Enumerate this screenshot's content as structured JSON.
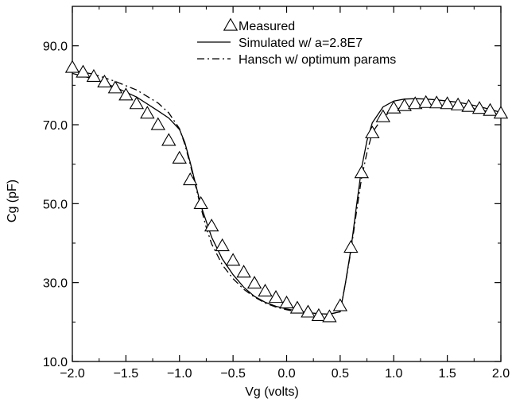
{
  "chart_data": {
    "type": "line",
    "title": "",
    "xlabel": "Vg (volts)",
    "ylabel": "Cg (pF)",
    "xlim": [
      -2.0,
      2.0
    ],
    "ylim": [
      10.0,
      100.0
    ],
    "xticks": [
      -2.0,
      -1.5,
      -1.0,
      -0.5,
      0.0,
      0.5,
      1.0,
      1.5,
      2.0
    ],
    "xtick_labels": [
      "−2.0",
      "−1.5",
      "−1.0",
      "−0.5",
      "0.0",
      "0.5",
      "1.0",
      "1.5",
      "2.0"
    ],
    "yticks": [
      10.0,
      30.0,
      50.0,
      70.0,
      90.0
    ],
    "ytick_labels": [
      "10.0",
      "30.0",
      "50.0",
      "70.0",
      "90.0"
    ],
    "grid": false,
    "legend_position": "top-center",
    "series": [
      {
        "name": "Measured",
        "marker": "triangle",
        "line": "none",
        "x": [
          -2.0,
          -1.9,
          -1.8,
          -1.7,
          -1.6,
          -1.5,
          -1.4,
          -1.3,
          -1.2,
          -1.1,
          -1.0,
          -0.9,
          -0.8,
          -0.7,
          -0.6,
          -0.5,
          -0.4,
          -0.3,
          -0.2,
          -0.1,
          0.0,
          0.1,
          0.2,
          0.3,
          0.4,
          0.5,
          0.6,
          0.7,
          0.8,
          0.9,
          1.0,
          1.1,
          1.2,
          1.3,
          1.4,
          1.5,
          1.6,
          1.7,
          1.8,
          1.9,
          2.0
        ],
        "y": [
          84.5,
          83.3,
          82.2,
          80.8,
          79.3,
          77.5,
          75.3,
          72.9,
          70.0,
          66.0,
          61.5,
          56.0,
          50.0,
          44.3,
          39.3,
          35.6,
          32.6,
          29.8,
          27.8,
          26.2,
          24.8,
          23.5,
          22.5,
          21.6,
          21.3,
          24.1,
          38.9,
          57.8,
          67.9,
          72.0,
          74.2,
          74.8,
          75.3,
          75.6,
          75.5,
          75.3,
          75.0,
          74.6,
          74.1,
          73.6,
          72.9
        ]
      },
      {
        "name": "Simulated w/ a=2.8E7",
        "line": "solid",
        "x": [
          -2.0,
          -1.8,
          -1.6,
          -1.4,
          -1.2,
          -1.1,
          -1.0,
          -0.95,
          -0.9,
          -0.85,
          -0.8,
          -0.7,
          -0.6,
          -0.5,
          -0.4,
          -0.3,
          -0.2,
          -0.1,
          0.0,
          0.1,
          0.2,
          0.3,
          0.4,
          0.5,
          0.55,
          0.6,
          0.65,
          0.7,
          0.75,
          0.8,
          0.9,
          1.0,
          1.1,
          1.2,
          1.3,
          1.4,
          1.5,
          1.6,
          1.7,
          1.8,
          1.9,
          2.0
        ],
        "y": [
          83.0,
          81.6,
          79.5,
          77.0,
          73.5,
          71.7,
          68.8,
          65.5,
          60.5,
          55.0,
          49.5,
          41.5,
          36.0,
          32.0,
          28.8,
          26.5,
          25.0,
          24.0,
          23.3,
          22.8,
          22.4,
          22.1,
          22.0,
          22.6,
          30.0,
          38.5,
          49.0,
          59.0,
          66.0,
          70.5,
          74.5,
          76.0,
          76.5,
          76.6,
          76.5,
          76.3,
          76.0,
          75.7,
          75.2,
          74.6,
          73.9,
          73.1
        ]
      },
      {
        "name": "Hansch w/ optimum params",
        "line": "dashdot",
        "x": [
          -2.0,
          -1.8,
          -1.6,
          -1.4,
          -1.2,
          -1.1,
          -1.0,
          -0.95,
          -0.9,
          -0.85,
          -0.8,
          -0.75,
          -0.7,
          -0.6,
          -0.5,
          -0.4,
          -0.3,
          -0.2,
          -0.1,
          0.0,
          0.1,
          0.2,
          0.3,
          0.4,
          0.5,
          0.55,
          0.6,
          0.65,
          0.7,
          0.75,
          0.8,
          0.9,
          1.0,
          1.1,
          1.2,
          1.3,
          1.4,
          1.5,
          1.6,
          1.7,
          1.8,
          1.9,
          2.0
        ],
        "y": [
          83.8,
          82.8,
          81.0,
          78.8,
          75.5,
          73.0,
          69.0,
          65.0,
          60.0,
          54.5,
          49.0,
          44.0,
          39.8,
          34.5,
          31.0,
          28.3,
          26.3,
          24.8,
          23.8,
          23.1,
          22.6,
          22.3,
          22.1,
          22.0,
          22.6,
          30.0,
          38.0,
          47.5,
          56.5,
          63.0,
          68.0,
          72.0,
          73.8,
          74.5,
          74.8,
          74.9,
          74.9,
          74.8,
          74.6,
          74.3,
          73.8,
          73.2,
          72.6
        ]
      }
    ]
  }
}
